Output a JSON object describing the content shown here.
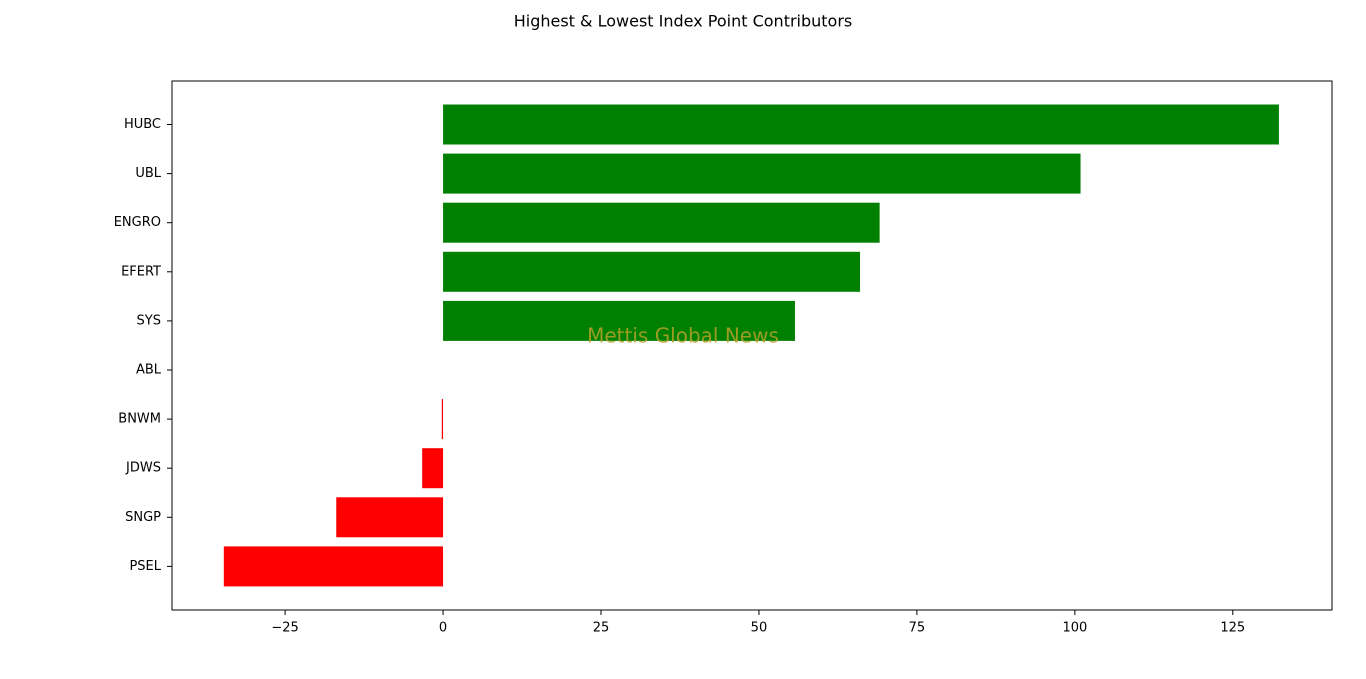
{
  "chart_data": {
    "type": "barh",
    "title": "Highest & Lowest Index Point Contributors",
    "watermark": "Mettis Global News",
    "categories": [
      "HUBC",
      "UBL",
      "ENGRO",
      "EFERT",
      "SYS",
      "ABL",
      "BNWM",
      "JDWS",
      "SNGP",
      "PSEL"
    ],
    "values": [
      132.3,
      100.9,
      69.1,
      66.0,
      55.7,
      0,
      -0.2,
      -3.3,
      -16.9,
      -34.7
    ],
    "colors": [
      "#008000",
      "#008000",
      "#008000",
      "#008000",
      "#008000",
      "#008000",
      "#ff0000",
      "#ff0000",
      "#ff0000",
      "#ff0000"
    ],
    "xlim": [
      -42.9,
      140.7
    ],
    "xticks": [
      {
        "value": -25,
        "label": "−25"
      },
      0,
      25,
      50,
      75,
      100,
      125
    ],
    "grid": false
  }
}
